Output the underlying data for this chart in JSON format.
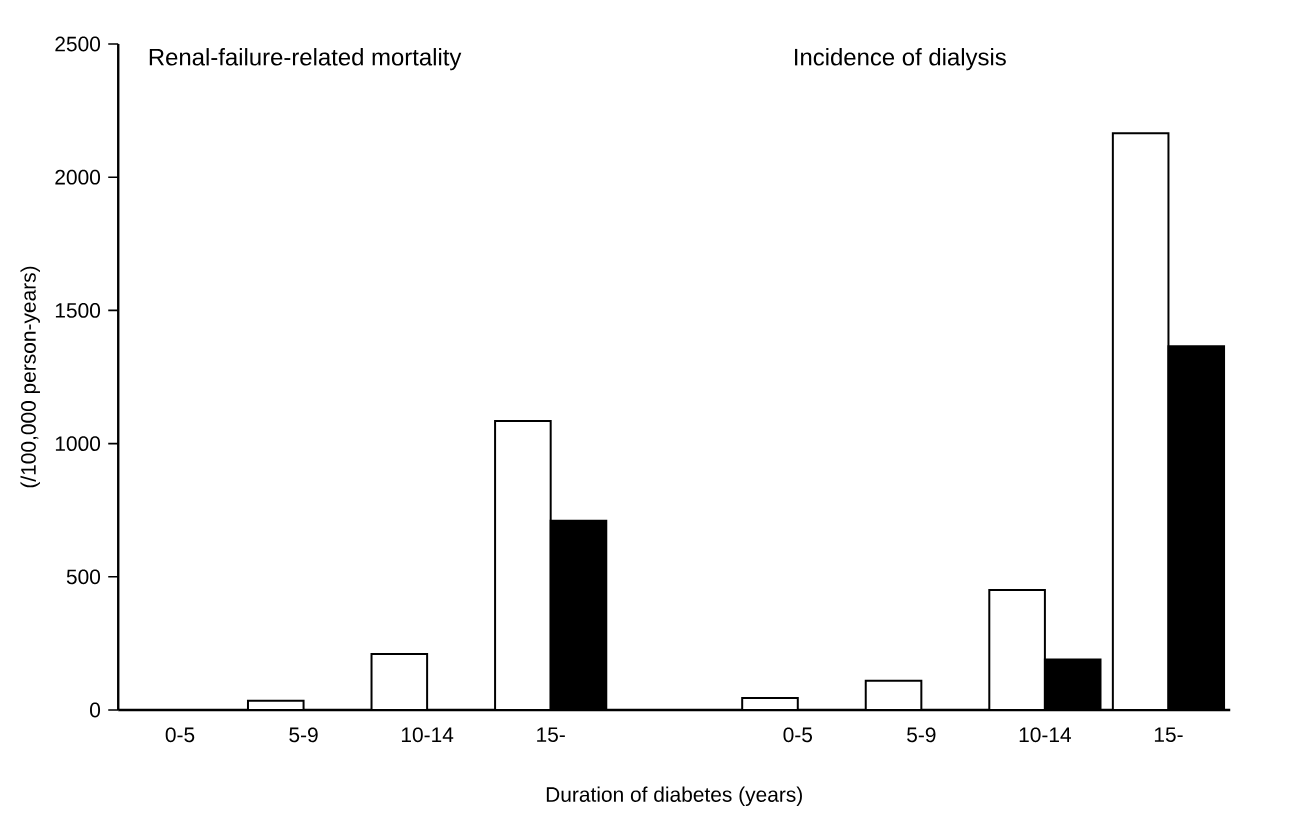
{
  "chart_data": {
    "type": "bar",
    "categories": [
      "0-5",
      "5-9",
      "10-14",
      "15-",
      null,
      "0-5",
      "5-9",
      "10-14",
      "15-"
    ],
    "series": [
      {
        "color": "#ffffff",
        "values": [
          null,
          35,
          210,
          1085,
          null,
          45,
          110,
          450,
          2165
        ]
      },
      {
        "color": "#000000",
        "values": [
          null,
          null,
          null,
          710,
          null,
          null,
          null,
          190,
          1365
        ]
      }
    ],
    "ylim": [
      0,
      2500
    ],
    "yticks": [
      0,
      500,
      1000,
      1500,
      2000,
      2500
    ],
    "xlabel": "Duration of diabetes (years)",
    "ylabel": "(/100,000 person-years)",
    "annotations": [
      "Renal-failure-related mortality",
      "Incidence of dialysis"
    ],
    "grid": false
  }
}
